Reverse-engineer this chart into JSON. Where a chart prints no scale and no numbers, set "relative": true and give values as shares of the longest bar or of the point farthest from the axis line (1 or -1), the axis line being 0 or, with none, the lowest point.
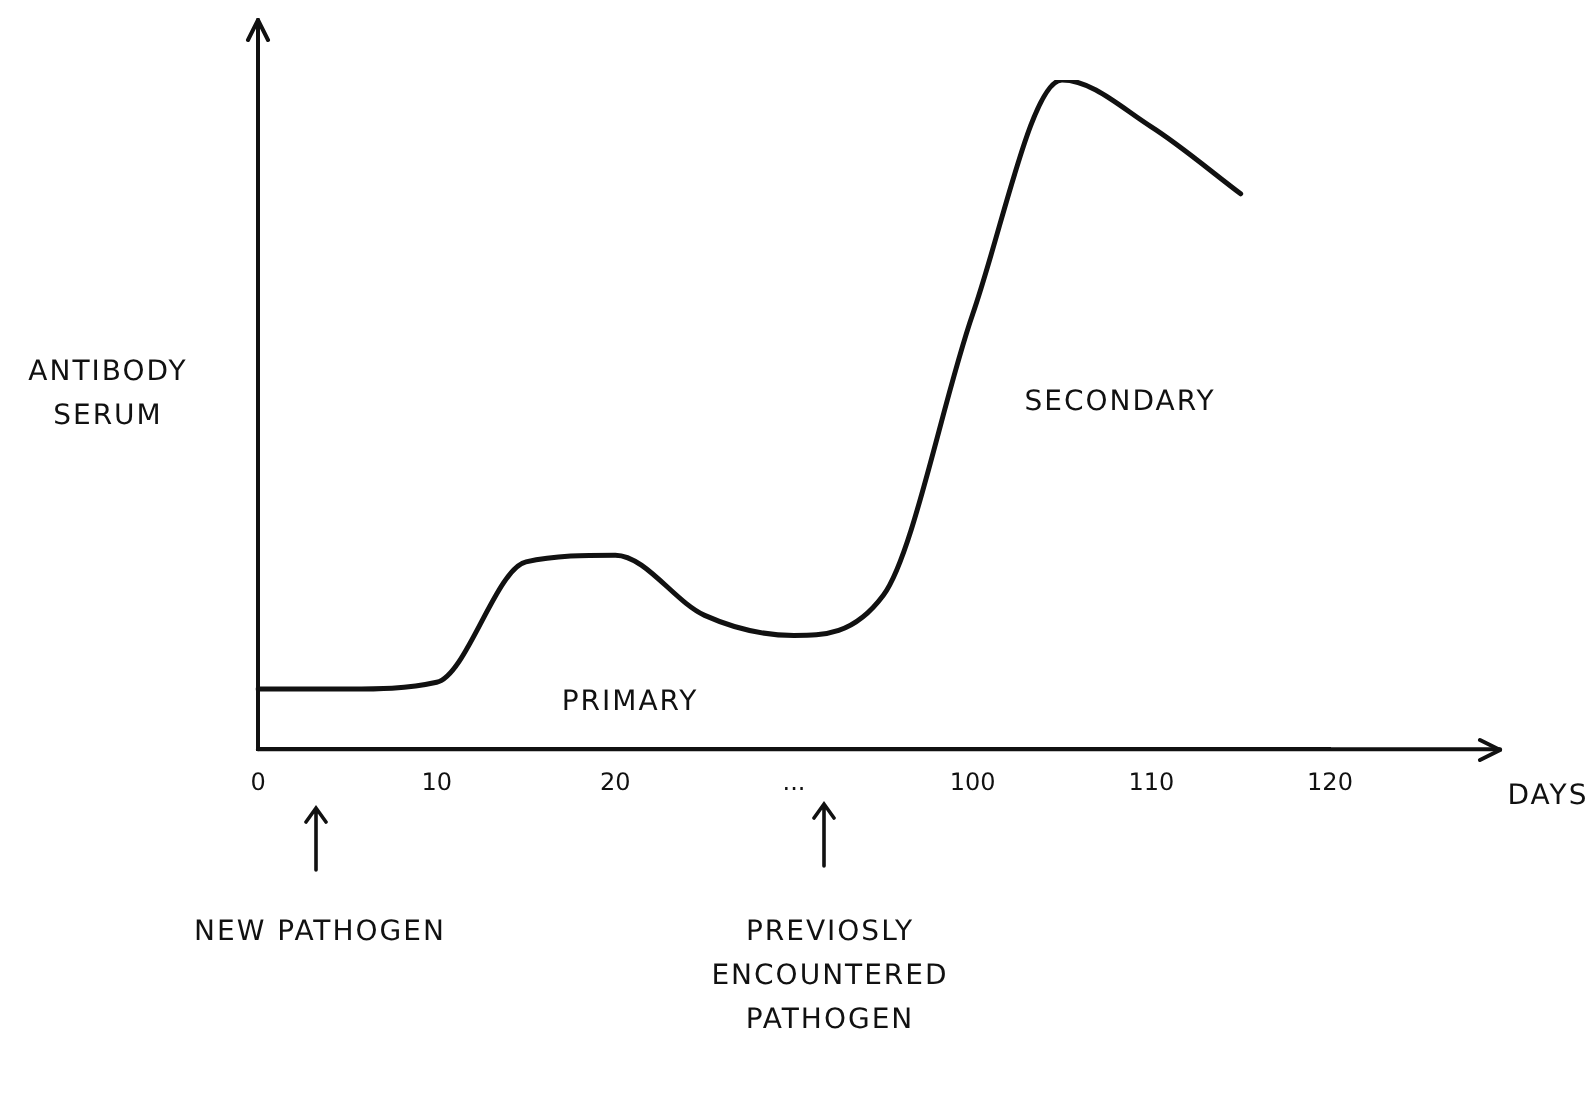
{
  "chart_data": {
    "type": "line",
    "relative": true,
    "ylabel": "ANTIBODY SERUM",
    "categories": [
      "0",
      null,
      "10",
      null,
      "20",
      null,
      "...",
      null,
      "100",
      null,
      "110",
      null,
      "120"
    ],
    "series": [
      {
        "color": "#111111",
        "values": [
          0.09,
          0.09,
          0.1,
          0.28,
          0.29,
          0.2,
          0.17,
          0.23,
          0.65,
          1,
          0.93,
          0.83,
          null
        ]
      }
    ],
    "annotations": [
      "PRIMARY",
      "SECONDARY",
      "NEW PATHOGEN",
      "PREVIOSLY ENCOUNTERED PATHOGEN",
      "DAYS"
    ],
    "marker": "none",
    "grid": false,
    "legend": false
  }
}
